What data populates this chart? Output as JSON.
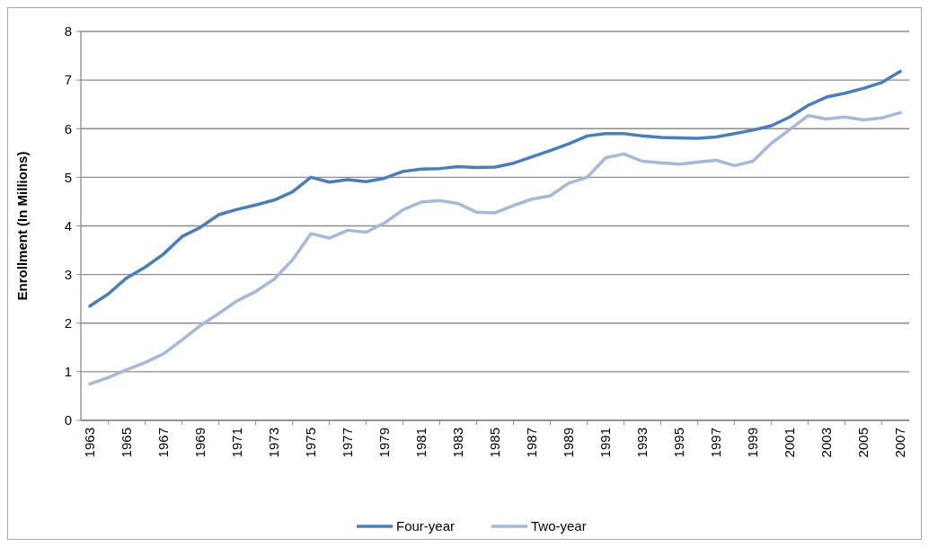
{
  "chart_data": {
    "type": "line",
    "ylabel": "Enrollment (In Millions)",
    "categories": [
      "1963",
      null,
      "1965",
      null,
      "1967",
      null,
      "1969",
      null,
      "1971",
      null,
      "1973",
      null,
      "1975",
      null,
      "1977",
      null,
      "1979",
      null,
      "1981",
      null,
      "1983",
      null,
      "1985",
      null,
      "1987",
      null,
      "1989",
      null,
      "1991",
      null,
      "1993",
      null,
      "1995",
      null,
      "1997",
      null,
      "1999",
      null,
      "2001",
      null,
      "2003",
      null,
      "2005",
      null,
      "2007"
    ],
    "series": [
      {
        "name": "Four-year",
        "color": "#4a7ebb",
        "values": [
          2.35,
          2.6,
          2.93,
          3.15,
          3.42,
          3.78,
          3.97,
          4.23,
          4.34,
          4.43,
          4.53,
          4.7,
          5.0,
          4.9,
          4.95,
          4.91,
          4.98,
          5.12,
          5.17,
          5.18,
          5.22,
          5.2,
          5.21,
          5.29,
          5.42,
          5.55,
          5.69,
          5.85,
          5.9,
          5.9,
          5.85,
          5.82,
          5.81,
          5.8,
          5.83,
          5.9,
          5.97,
          6.06,
          6.24,
          6.48,
          6.65,
          6.73,
          6.83,
          6.95,
          7.18
        ]
      },
      {
        "name": "Two-year",
        "color": "#a5b9dc",
        "values": [
          0.75,
          0.88,
          1.04,
          1.19,
          1.37,
          1.65,
          1.95,
          2.2,
          2.46,
          2.65,
          2.9,
          3.3,
          3.84,
          3.75,
          3.91,
          3.87,
          4.06,
          4.33,
          4.49,
          4.52,
          4.46,
          4.28,
          4.27,
          4.42,
          4.55,
          4.62,
          4.88,
          5.0,
          5.4,
          5.48,
          5.33,
          5.3,
          5.27,
          5.31,
          5.35,
          5.24,
          5.33,
          5.7,
          5.98,
          6.27,
          6.2,
          6.24,
          6.18,
          6.22,
          6.33
        ]
      }
    ],
    "ylim": [
      0,
      8
    ],
    "yticks": [
      0,
      1,
      2,
      3,
      4,
      5,
      6,
      7,
      8
    ],
    "grid": "y",
    "legend": "bottom",
    "line_style": "solid",
    "marker": "none"
  }
}
